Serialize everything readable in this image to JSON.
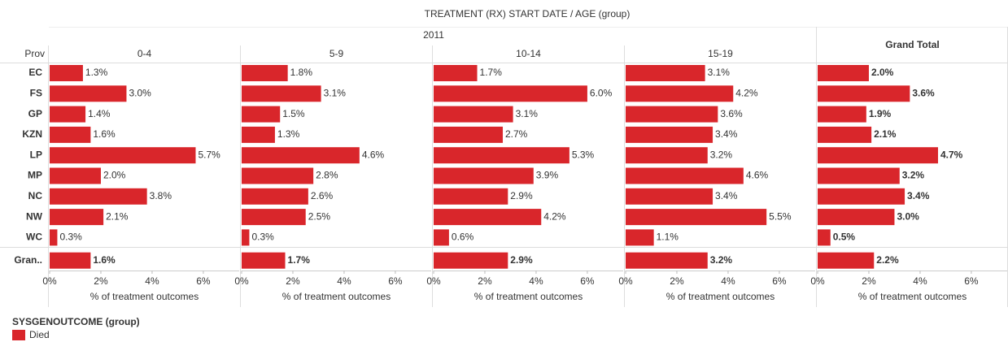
{
  "chart_data": {
    "type": "bar",
    "title": "TREATMENT (RX) START DATE  /  AGE (group)",
    "subtitle": "2011",
    "row_header": "Prov",
    "categories": [
      "EC",
      "FS",
      "GP",
      "KZN",
      "LP",
      "MP",
      "NC",
      "NW",
      "WC",
      "Gran.."
    ],
    "xlabel": "% of treatment outcomes",
    "xlim": [
      0,
      7.4
    ],
    "xticks": [
      {
        "value": 0,
        "label": "0%"
      },
      {
        "value": 2,
        "label": "2%"
      },
      {
        "value": 4,
        "label": "4%"
      },
      {
        "value": 6,
        "label": "6%"
      }
    ],
    "legend_title": "SYSGENOUTCOME (group)",
    "series": [
      {
        "name": "Died",
        "color": "#d9262b"
      }
    ],
    "panels": [
      {
        "title": "0-4",
        "values": [
          1.3,
          3.0,
          1.4,
          1.6,
          5.7,
          2.0,
          3.8,
          2.1,
          0.3,
          1.6
        ],
        "value_labels": [
          "1.3%",
          "3.0%",
          "1.4%",
          "1.6%",
          "5.7%",
          "2.0%",
          "3.8%",
          "2.1%",
          "0.3%",
          "1.6%"
        ]
      },
      {
        "title": "5-9",
        "values": [
          1.8,
          3.1,
          1.5,
          1.3,
          4.6,
          2.8,
          2.6,
          2.5,
          0.3,
          1.7
        ],
        "value_labels": [
          "1.8%",
          "3.1%",
          "1.5%",
          "1.3%",
          "4.6%",
          "2.8%",
          "2.6%",
          "2.5%",
          "0.3%",
          "1.7%"
        ]
      },
      {
        "title": "10-14",
        "values": [
          1.7,
          6.0,
          3.1,
          2.7,
          5.3,
          3.9,
          2.9,
          4.2,
          0.6,
          2.9
        ],
        "value_labels": [
          "1.7%",
          "6.0%",
          "3.1%",
          "2.7%",
          "5.3%",
          "3.9%",
          "2.9%",
          "4.2%",
          "0.6%",
          "2.9%"
        ]
      },
      {
        "title": "15-19",
        "values": [
          3.1,
          4.2,
          3.6,
          3.4,
          3.2,
          4.6,
          3.4,
          5.5,
          1.1,
          3.2
        ],
        "value_labels": [
          "3.1%",
          "4.2%",
          "3.6%",
          "3.4%",
          "3.2%",
          "4.6%",
          "3.4%",
          "5.5%",
          "1.1%",
          "3.2%"
        ]
      },
      {
        "title": "Grand Total",
        "values": [
          2.0,
          3.6,
          1.9,
          2.1,
          4.7,
          3.2,
          3.4,
          3.0,
          0.5,
          2.2
        ],
        "value_labels": [
          "2.0%",
          "3.6%",
          "1.9%",
          "2.1%",
          "4.7%",
          "3.2%",
          "3.4%",
          "3.0%",
          "0.5%",
          "2.2%"
        ]
      }
    ]
  }
}
